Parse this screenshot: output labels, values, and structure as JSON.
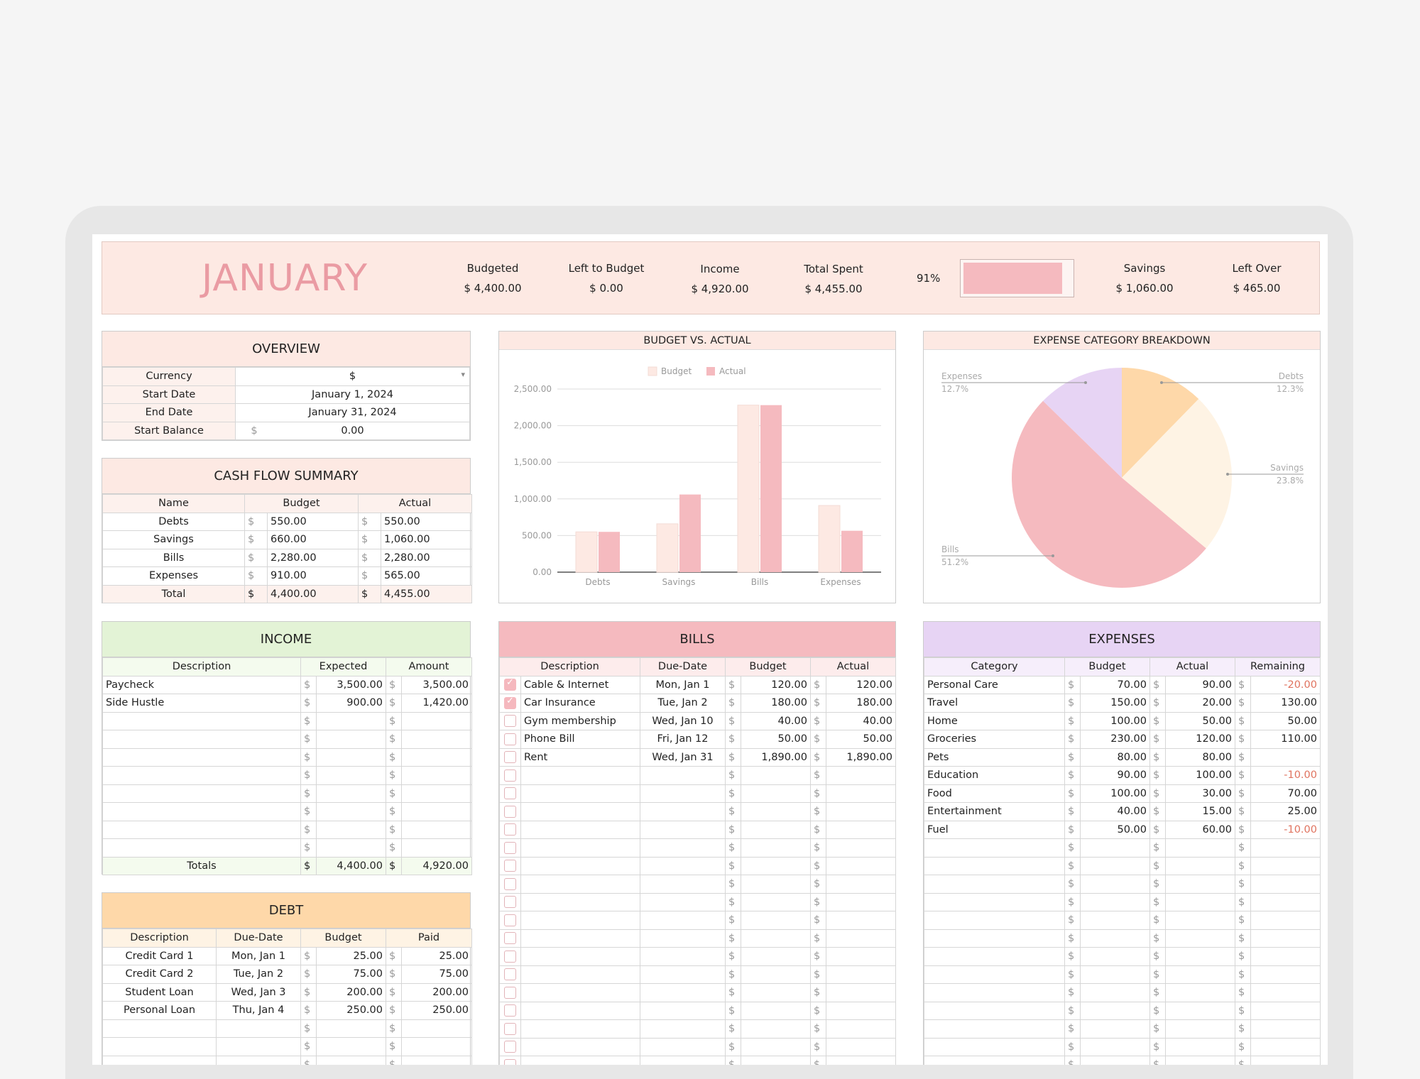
{
  "header": {
    "month": "JANUARY",
    "budgeted_label": "Budgeted",
    "budgeted": "$ 4,400.00",
    "left_label": "Left to Budget",
    "left": "$ 0.00",
    "income_label": "Income",
    "income": "$ 4,920.00",
    "spent_label": "Total Spent",
    "spent": "$ 4,455.00",
    "percent": "91%",
    "progress": 0.91,
    "savings_label": "Savings",
    "savings": "$ 1,060.00",
    "leftover_label": "Left Over",
    "leftover": "$ 465.00"
  },
  "overview": {
    "title": "OVERVIEW",
    "rows": [
      {
        "label": "Currency",
        "value": "$",
        "dropdown": true
      },
      {
        "label": "Start Date",
        "value": "January 1, 2024"
      },
      {
        "label": "End Date",
        "value": "January 31, 2024"
      },
      {
        "label": "Start Balance",
        "value": "0.00",
        "cur": "$"
      }
    ]
  },
  "cashflow": {
    "title": "CASH FLOW SUMMARY",
    "headers": [
      "Name",
      "Budget",
      "Actual"
    ],
    "rows": [
      {
        "name": "Debts",
        "budget": "550.00",
        "actual": "550.00"
      },
      {
        "name": "Savings",
        "budget": "660.00",
        "actual": "1,060.00"
      },
      {
        "name": "Bills",
        "budget": "2,280.00",
        "actual": "2,280.00"
      },
      {
        "name": "Expenses",
        "budget": "910.00",
        "actual": "565.00"
      }
    ],
    "total": {
      "name": "Total",
      "budget": "4,400.00",
      "actual": "4,455.00"
    }
  },
  "income": {
    "title": "INCOME",
    "headers": [
      "Description",
      "Expected",
      "Amount"
    ],
    "rows": [
      {
        "d": "Paycheck",
        "e": "3,500.00",
        "a": "3,500.00"
      },
      {
        "d": "Side Hustle",
        "e": "900.00",
        "a": "1,420.00"
      },
      {
        "d": "",
        "e": "",
        "a": ""
      },
      {
        "d": "",
        "e": "",
        "a": ""
      },
      {
        "d": "",
        "e": "",
        "a": ""
      },
      {
        "d": "",
        "e": "",
        "a": ""
      },
      {
        "d": "",
        "e": "",
        "a": ""
      },
      {
        "d": "",
        "e": "",
        "a": ""
      },
      {
        "d": "",
        "e": "",
        "a": ""
      },
      {
        "d": "",
        "e": "",
        "a": ""
      }
    ],
    "totals_label": "Totals",
    "total_expected": "4,400.00",
    "total_amount": "4,920.00"
  },
  "debt": {
    "title": "DEBT",
    "headers": [
      "Description",
      "Due-Date",
      "Budget",
      "Paid"
    ],
    "rows": [
      {
        "d": "Credit Card 1",
        "due": "Mon, Jan 1",
        "b": "25.00",
        "p": "25.00"
      },
      {
        "d": "Credit Card 2",
        "due": "Tue, Jan 2",
        "b": "75.00",
        "p": "75.00"
      },
      {
        "d": "Student Loan",
        "due": "Wed, Jan 3",
        "b": "200.00",
        "p": "200.00"
      },
      {
        "d": "Personal Loan",
        "due": "Thu, Jan 4",
        "b": "250.00",
        "p": "250.00"
      },
      {
        "d": "",
        "due": "",
        "b": "",
        "p": ""
      },
      {
        "d": "",
        "due": "",
        "b": "",
        "p": ""
      },
      {
        "d": "",
        "due": "",
        "b": "",
        "p": ""
      }
    ]
  },
  "bills": {
    "title": "BILLS",
    "headers": [
      "Description",
      "Due-Date",
      "Budget",
      "Actual"
    ],
    "rows": [
      {
        "chk": true,
        "d": "Cable & Internet",
        "due": "Mon, Jan 1",
        "b": "120.00",
        "a": "120.00"
      },
      {
        "chk": true,
        "d": "Car Insurance",
        "due": "Tue, Jan 2",
        "b": "180.00",
        "a": "180.00"
      },
      {
        "chk": false,
        "d": "Gym membership",
        "due": "Wed, Jan 10",
        "b": "40.00",
        "a": "40.00"
      },
      {
        "chk": false,
        "d": "Phone Bill",
        "due": "Fri, Jan 12",
        "b": "50.00",
        "a": "50.00"
      },
      {
        "chk": false,
        "d": "Rent",
        "due": "Wed, Jan 31",
        "b": "1,890.00",
        "a": "1,890.00"
      }
    ],
    "empty_rows": 17
  },
  "expenses": {
    "title": "EXPENSES",
    "headers": [
      "Category",
      "Budget",
      "Actual",
      "Remaining"
    ],
    "rows": [
      {
        "c": "Personal Care",
        "b": "70.00",
        "a": "90.00",
        "r": "-20.00"
      },
      {
        "c": "Travel",
        "b": "150.00",
        "a": "20.00",
        "r": "130.00"
      },
      {
        "c": "Home",
        "b": "100.00",
        "a": "50.00",
        "r": "50.00"
      },
      {
        "c": "Groceries",
        "b": "230.00",
        "a": "120.00",
        "r": "110.00"
      },
      {
        "c": "Pets",
        "b": "80.00",
        "a": "80.00",
        "r": ""
      },
      {
        "c": "Education",
        "b": "90.00",
        "a": "100.00",
        "r": "-10.00"
      },
      {
        "c": "Food",
        "b": "100.00",
        "a": "30.00",
        "r": "70.00"
      },
      {
        "c": "Entertainment",
        "b": "40.00",
        "a": "15.00",
        "r": "25.00"
      },
      {
        "c": "Fuel",
        "b": "50.00",
        "a": "60.00",
        "r": "-10.00"
      }
    ],
    "empty_rows": 13
  },
  "currency_symbol": "$",
  "colors": {
    "pink": "#f5babf",
    "light_pink": "#fde9e3",
    "green": "#e3f3d6",
    "peach": "#fed8a9",
    "purple": "#e7d4f4",
    "cream": "#fef3e4",
    "negative": "#e0735f",
    "month_text": "#ea9ba3"
  },
  "chart_data": [
    {
      "type": "bar",
      "title": "BUDGET VS. ACTUAL",
      "categories": [
        "Debts",
        "Savings",
        "Bills",
        "Expenses"
      ],
      "series": [
        {
          "name": "Budget",
          "values": [
            550,
            660,
            2280,
            910
          ],
          "color": "#fde9e3"
        },
        {
          "name": "Actual",
          "values": [
            550,
            1060,
            2280,
            565
          ],
          "color": "#f5babf"
        }
      ],
      "ylim": [
        0,
        2500
      ],
      "yticks": [
        "0.00",
        "500.00",
        "1,000.00",
        "1,500.00",
        "2,000.00",
        "2,500.00"
      ],
      "legend": "top",
      "grid": true
    },
    {
      "type": "pie",
      "title": "EXPENSE CATEGORY BREAKDOWN",
      "slices": [
        {
          "label": "Debts",
          "value": 12.3,
          "text": "12.3%",
          "color": "#fed8a9"
        },
        {
          "label": "Savings",
          "value": 23.8,
          "text": "23.8%",
          "color": "#fef3e4"
        },
        {
          "label": "Bills",
          "value": 51.2,
          "text": "51.2%",
          "color": "#f5babf"
        },
        {
          "label": "Expenses",
          "value": 12.7,
          "text": "12.7%",
          "color": "#e7d4f4"
        }
      ]
    }
  ]
}
